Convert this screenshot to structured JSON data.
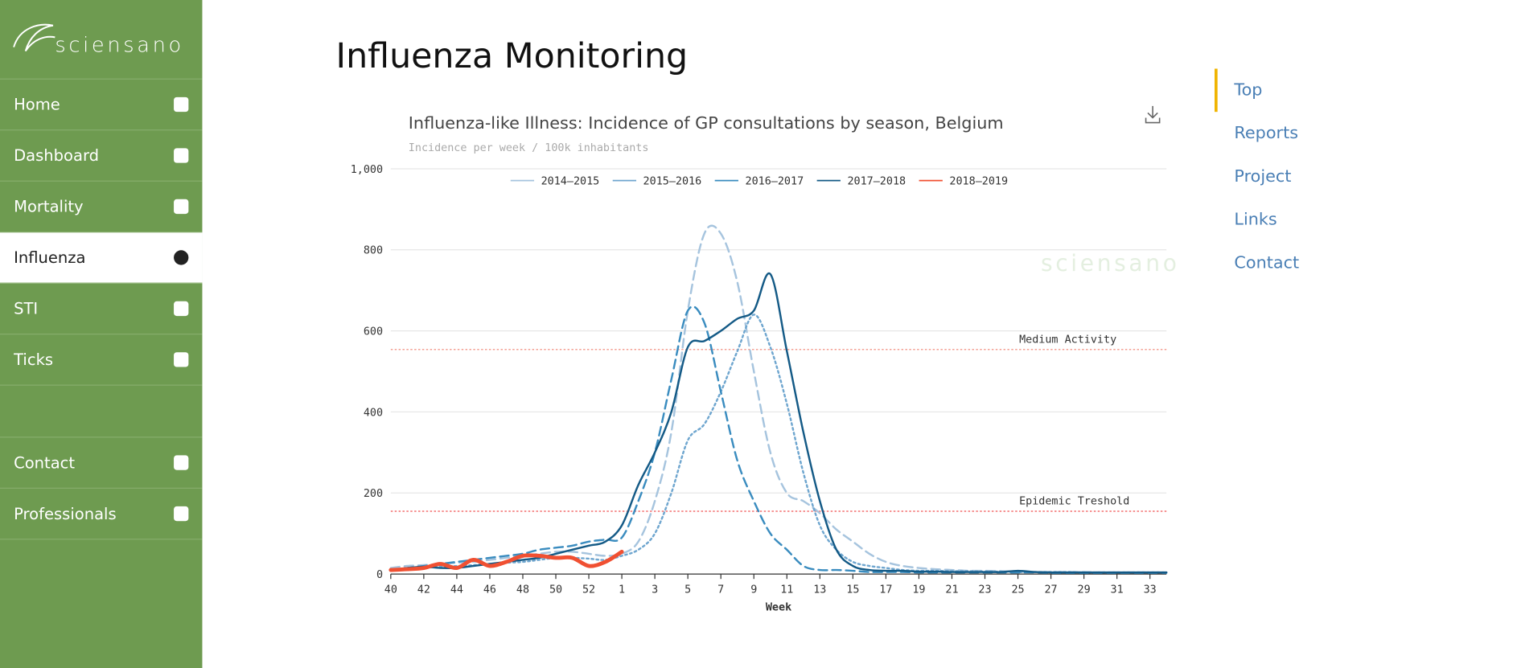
{
  "sidebar": {
    "logo": "sciensano",
    "active_index": 3,
    "items": [
      "Home",
      "Dashboard",
      "Mortality",
      "Influenza",
      "STI",
      "Ticks",
      "Contact",
      "Professionals"
    ]
  },
  "header": {
    "title": "Influenza Monitoring"
  },
  "toc": {
    "items": [
      "Top",
      "Reports",
      "Project",
      "Links",
      "Contact"
    ],
    "active_index": 0
  },
  "chart_data": {
    "type": "line",
    "title": "Influenza-like Illness: Incidence of GP consultations by season, Belgium",
    "subtitle": "Incidence per week / 100k inhabitants",
    "x_label": "Week",
    "watermark": "sciensano",
    "categories": [
      "40",
      null,
      "42",
      null,
      "44",
      null,
      "46",
      null,
      "48",
      null,
      "50",
      null,
      "52",
      null,
      "1",
      null,
      "3",
      null,
      "5",
      null,
      "7",
      null,
      "9",
      null,
      "11",
      null,
      "13",
      null,
      "15",
      null,
      "17",
      null,
      "19",
      null,
      "21",
      null,
      "23",
      null,
      "25",
      null,
      "27",
      null,
      "29",
      null,
      "31",
      null,
      "33",
      null
    ],
    "ylim": [
      0,
      1000
    ],
    "yticks": [
      0,
      200,
      400,
      600,
      800,
      {
        "value": 1000,
        "label": "1,000"
      }
    ],
    "grid": true,
    "legend": "top",
    "reference_lines": [
      {
        "label": "Medium Activity",
        "value": 554,
        "color": "#f08070"
      },
      {
        "label": "Epidemic Treshold",
        "value": 155,
        "color": "#f05050"
      }
    ],
    "series": [
      {
        "name": "2014—2015",
        "color": "#a6c4de",
        "dash": "dashed",
        "width": 2,
        "values": [
          15,
          20,
          22,
          25,
          28,
          30,
          35,
          40,
          45,
          50,
          55,
          55,
          50,
          45,
          50,
          80,
          180,
          350,
          650,
          840,
          840,
          720,
          500,
          300,
          200,
          180,
          150,
          110,
          80,
          50,
          30,
          20,
          15,
          12,
          10,
          8,
          8,
          7,
          6,
          5,
          5,
          5,
          5,
          4,
          4,
          4,
          4,
          4
        ]
      },
      {
        "name": "2015—2016",
        "color": "#6fa6cf",
        "dash": "dotted",
        "width": 2,
        "values": [
          10,
          12,
          15,
          18,
          20,
          22,
          25,
          28,
          30,
          35,
          40,
          40,
          38,
          35,
          45,
          60,
          100,
          200,
          330,
          370,
          450,
          550,
          640,
          560,
          420,
          250,
          120,
          60,
          30,
          20,
          15,
          10,
          8,
          8,
          7,
          7,
          6,
          6,
          5,
          5,
          5,
          5,
          4,
          4,
          4,
          4,
          4,
          4
        ]
      },
      {
        "name": "2016—2017",
        "color": "#3a8cbf",
        "dash": "dashed",
        "width": 2,
        "values": [
          10,
          15,
          20,
          25,
          30,
          35,
          40,
          45,
          50,
          60,
          65,
          70,
          80,
          85,
          90,
          180,
          300,
          480,
          650,
          620,
          450,
          280,
          180,
          100,
          60,
          20,
          10,
          10,
          8,
          5,
          5,
          5,
          4,
          4,
          4,
          4,
          4,
          4,
          4,
          4,
          3,
          3,
          3,
          3,
          3,
          3,
          3,
          3
        ]
      },
      {
        "name": "2017—2018",
        "color": "#145a86",
        "dash": "solid",
        "width": 2,
        "values": [
          10,
          15,
          18,
          15,
          15,
          20,
          25,
          30,
          35,
          40,
          50,
          60,
          70,
          80,
          120,
          220,
          300,
          400,
          560,
          575,
          600,
          630,
          650,
          740,
          550,
          350,
          180,
          60,
          20,
          10,
          8,
          8,
          6,
          6,
          5,
          5,
          5,
          5,
          8,
          5,
          4,
          4,
          4,
          4,
          4,
          4,
          4,
          4
        ]
      },
      {
        "name": "2018—2019",
        "color": "#f05032",
        "dash": "solid",
        "width": 4,
        "values": [
          10,
          12,
          15,
          25,
          15,
          35,
          20,
          30,
          45,
          45,
          40,
          40,
          20,
          30,
          55,
          null,
          null,
          null,
          null,
          null,
          null,
          null,
          null,
          null,
          null,
          null,
          null,
          null,
          null,
          null,
          null,
          null,
          null,
          null,
          null,
          null,
          null,
          null,
          null,
          null,
          null,
          null,
          null,
          null,
          null,
          null,
          null,
          null
        ]
      }
    ]
  }
}
